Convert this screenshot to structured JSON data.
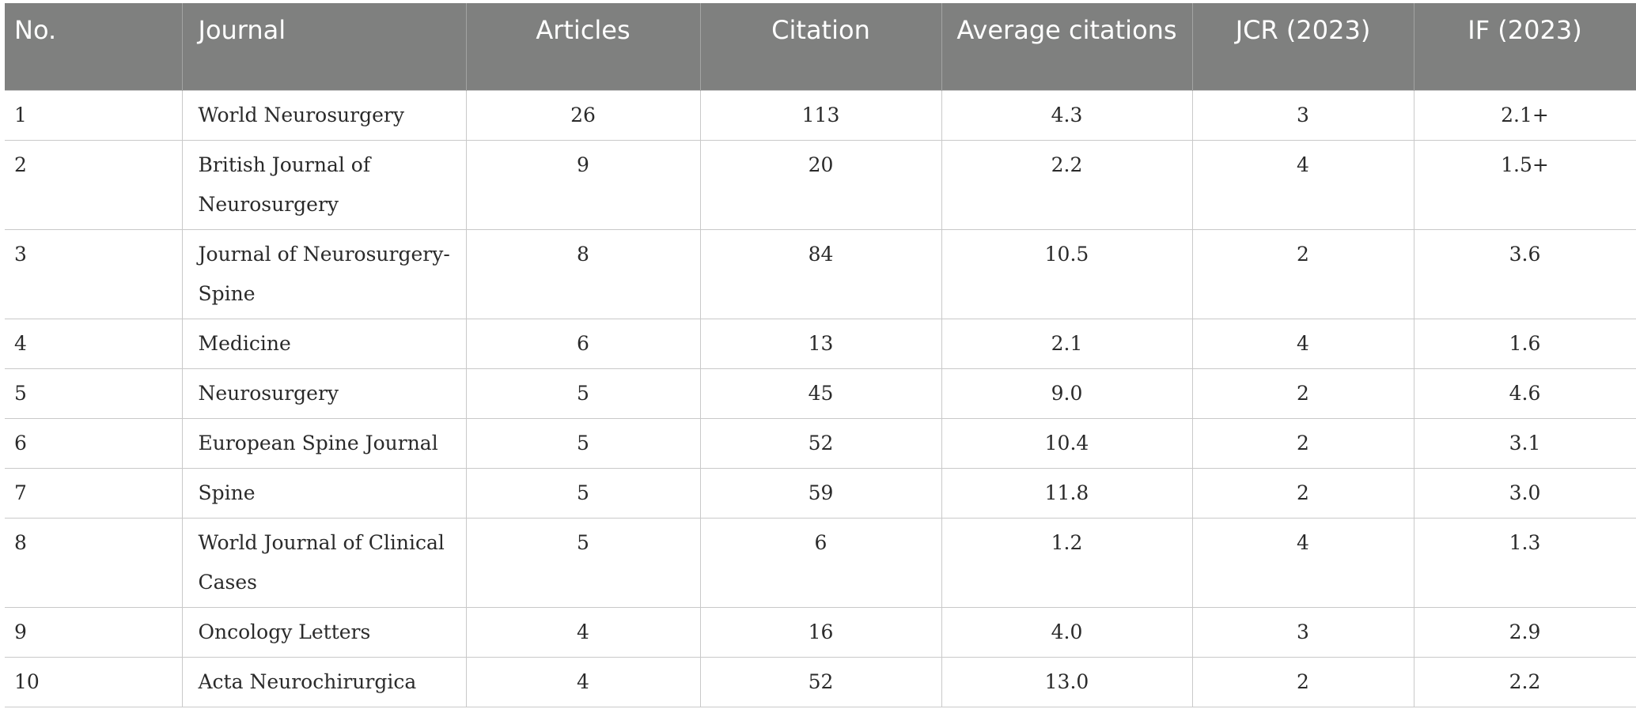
{
  "table": {
    "headers": {
      "no": "No.",
      "journal": "Journal",
      "articles": "Articles",
      "citation": "Citation",
      "average_citations": "Average citations",
      "jcr": "JCR (2023)",
      "if": "IF (2023)"
    },
    "rows": [
      {
        "no": "1",
        "journal": "World Neurosurgery",
        "articles": "26",
        "citation": "113",
        "average_citations": "4.3",
        "jcr": "3",
        "if": "2.1+"
      },
      {
        "no": "2",
        "journal": "British Journal of Neurosurgery",
        "articles": "9",
        "citation": "20",
        "average_citations": "2.2",
        "jcr": "4",
        "if": "1.5+"
      },
      {
        "no": "3",
        "journal": "Journal of Neurosurgery-Spine",
        "articles": "8",
        "citation": "84",
        "average_citations": "10.5",
        "jcr": "2",
        "if": "3.6"
      },
      {
        "no": "4",
        "journal": "Medicine",
        "articles": "6",
        "citation": "13",
        "average_citations": "2.1",
        "jcr": "4",
        "if": "1.6"
      },
      {
        "no": "5",
        "journal": "Neurosurgery",
        "articles": "5",
        "citation": "45",
        "average_citations": "9.0",
        "jcr": "2",
        "if": "4.6"
      },
      {
        "no": "6",
        "journal": "European Spine Journal",
        "articles": "5",
        "citation": "52",
        "average_citations": "10.4",
        "jcr": "2",
        "if": "3.1"
      },
      {
        "no": "7",
        "journal": "Spine",
        "articles": "5",
        "citation": "59",
        "average_citations": "11.8",
        "jcr": "2",
        "if": "3.0"
      },
      {
        "no": "8",
        "journal": "World Journal of Clinical Cases",
        "articles": "5",
        "citation": "6",
        "average_citations": "1.2",
        "jcr": "4",
        "if": "1.3"
      },
      {
        "no": "9",
        "journal": "Oncology Letters",
        "articles": "4",
        "citation": "16",
        "average_citations": "4.0",
        "jcr": "3",
        "if": "2.9"
      },
      {
        "no": "10",
        "journal": "Acta Neurochirurgica",
        "articles": "4",
        "citation": "52",
        "average_citations": "13.0",
        "jcr": "2",
        "if": "2.2"
      }
    ]
  },
  "colors": {
    "header_background": "#7f807f",
    "header_text": "#ffffff",
    "grid_line": "#c9c9c9",
    "body_text": "#2a2a2a"
  }
}
